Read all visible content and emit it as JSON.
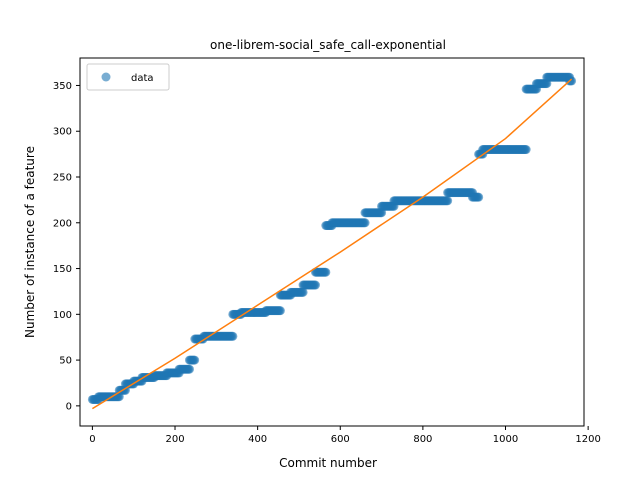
{
  "chart_data": {
    "type": "scatter",
    "title": "one-librem-social_safe_call-exponential",
    "xlabel": "Commit number",
    "ylabel": "Number of instance of a feature",
    "xlim": [
      -30,
      1190
    ],
    "ylim": [
      -22,
      380
    ],
    "xticks": [
      0,
      200,
      400,
      600,
      800,
      1000,
      1200
    ],
    "yticks": [
      0,
      50,
      100,
      150,
      200,
      250,
      300,
      350
    ],
    "grid": false,
    "legend": {
      "position": "top-left",
      "entries": [
        "data"
      ]
    },
    "colors": {
      "data": "#1f77b4",
      "fit": "#ff7f0e"
    },
    "series": [
      {
        "name": "data",
        "kind": "points",
        "segments": [
          {
            "x_start": 0,
            "x_end": 15,
            "y": 7
          },
          {
            "x_start": 15,
            "x_end": 65,
            "y": 10
          },
          {
            "x_start": 65,
            "x_end": 80,
            "y": 17
          },
          {
            "x_start": 80,
            "x_end": 100,
            "y": 24
          },
          {
            "x_start": 100,
            "x_end": 120,
            "y": 27
          },
          {
            "x_start": 120,
            "x_end": 150,
            "y": 31
          },
          {
            "x_start": 150,
            "x_end": 180,
            "y": 33
          },
          {
            "x_start": 180,
            "x_end": 210,
            "y": 36
          },
          {
            "x_start": 210,
            "x_end": 235,
            "y": 40
          },
          {
            "x_start": 235,
            "x_end": 248,
            "y": 50
          },
          {
            "x_start": 248,
            "x_end": 270,
            "y": 73
          },
          {
            "x_start": 270,
            "x_end": 340,
            "y": 76
          },
          {
            "x_start": 340,
            "x_end": 360,
            "y": 100
          },
          {
            "x_start": 360,
            "x_end": 420,
            "y": 102
          },
          {
            "x_start": 420,
            "x_end": 455,
            "y": 104
          },
          {
            "x_start": 455,
            "x_end": 480,
            "y": 121
          },
          {
            "x_start": 480,
            "x_end": 510,
            "y": 124
          },
          {
            "x_start": 510,
            "x_end": 540,
            "y": 132
          },
          {
            "x_start": 540,
            "x_end": 565,
            "y": 146
          },
          {
            "x_start": 565,
            "x_end": 580,
            "y": 197
          },
          {
            "x_start": 580,
            "x_end": 660,
            "y": 200
          },
          {
            "x_start": 660,
            "x_end": 700,
            "y": 211
          },
          {
            "x_start": 700,
            "x_end": 730,
            "y": 218
          },
          {
            "x_start": 730,
            "x_end": 860,
            "y": 224
          },
          {
            "x_start": 860,
            "x_end": 920,
            "y": 233
          },
          {
            "x_start": 920,
            "x_end": 935,
            "y": 228
          },
          {
            "x_start": 935,
            "x_end": 945,
            "y": 275
          },
          {
            "x_start": 945,
            "x_end": 1050,
            "y": 280
          },
          {
            "x_start": 1050,
            "x_end": 1075,
            "y": 346
          },
          {
            "x_start": 1075,
            "x_end": 1100,
            "y": 352
          },
          {
            "x_start": 1100,
            "x_end": 1155,
            "y": 359
          },
          {
            "x_start": 1155,
            "x_end": 1160,
            "y": 355
          }
        ]
      },
      {
        "name": "fit",
        "kind": "line",
        "x": [
          0,
          200,
          400,
          600,
          800,
          1000,
          1160
        ],
        "y": [
          -3,
          52,
          110,
          168,
          228,
          292,
          357
        ]
      }
    ]
  }
}
